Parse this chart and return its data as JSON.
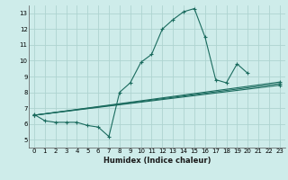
{
  "title": "",
  "xlabel": "Humidex (Indice chaleur)",
  "background_color": "#ceecea",
  "grid_color": "#aed4d0",
  "line_color": "#1a6b5e",
  "xlim": [
    -0.5,
    23.5
  ],
  "ylim": [
    4.5,
    13.5
  ],
  "xticks": [
    0,
    1,
    2,
    3,
    4,
    5,
    6,
    7,
    8,
    9,
    10,
    11,
    12,
    13,
    14,
    15,
    16,
    17,
    18,
    19,
    20,
    21,
    22,
    23
  ],
  "yticks": [
    5,
    6,
    7,
    8,
    9,
    10,
    11,
    12,
    13
  ],
  "main_series": {
    "x": [
      0,
      1,
      2,
      3,
      4,
      5,
      6,
      7,
      8,
      9,
      10,
      11,
      12,
      13,
      14,
      15,
      16,
      17,
      18,
      19,
      20
    ],
    "y": [
      6.6,
      6.2,
      6.1,
      6.1,
      6.1,
      5.9,
      5.8,
      5.2,
      8.0,
      8.6,
      9.9,
      10.4,
      12.0,
      12.6,
      13.1,
      13.3,
      11.5,
      8.8,
      8.6,
      9.8,
      9.2
    ]
  },
  "trend_lines": [
    {
      "x": [
        0,
        23
      ],
      "y": [
        6.55,
        8.65
      ]
    },
    {
      "x": [
        0,
        23
      ],
      "y": [
        6.55,
        8.55
      ]
    },
    {
      "x": [
        0,
        23
      ],
      "y": [
        6.55,
        8.45
      ]
    }
  ],
  "extra_points": [
    {
      "x": [
        22,
        23
      ],
      "y": [
        8.6,
        8.6
      ]
    },
    {
      "x": [
        22,
        23
      ],
      "y": [
        8.5,
        8.55
      ]
    },
    {
      "x": [
        22,
        23
      ],
      "y": [
        8.45,
        8.45
      ]
    }
  ]
}
